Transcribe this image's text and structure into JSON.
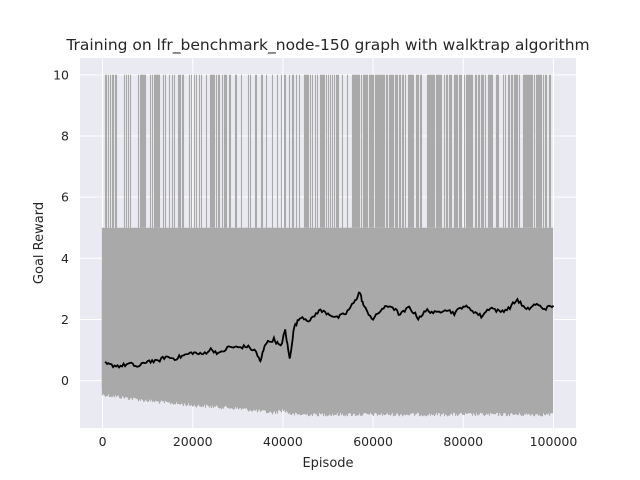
{
  "chart_data": {
    "type": "line",
    "title": "Training on lfr_benchmark_node-150 graph with walktrap algorithm",
    "xlabel": "Episode",
    "ylabel": "Goal Reward",
    "xlim": [
      -5000,
      105000
    ],
    "ylim": [
      -1.55,
      10.55
    ],
    "xticks": [
      0,
      20000,
      40000,
      60000,
      80000,
      100000
    ],
    "yticks": [
      0,
      2,
      4,
      6,
      8,
      10
    ],
    "grid": true,
    "background": "#eaeaf2",
    "series": [
      {
        "kind": "raw",
        "color": "#a9a9a9",
        "x_range": [
          0,
          100000
        ],
        "dense_band": [
          -1.0,
          5.0
        ],
        "upper_band": [
          0,
          10.0
        ],
        "early_lower_envelope": [
          [
            0,
            -0.4
          ],
          [
            5000,
            -0.5
          ],
          [
            10000,
            -0.6
          ],
          [
            20000,
            -0.75
          ],
          [
            30000,
            -0.85
          ],
          [
            38000,
            -1.0
          ],
          [
            40000,
            -0.9
          ],
          [
            42000,
            -1.05
          ],
          [
            100000,
            -1.05
          ]
        ]
      },
      {
        "kind": "rolling_mean",
        "color": "#000000",
        "x": [
          500,
          2000,
          4000,
          6000,
          8000,
          10000,
          12000,
          14000,
          16000,
          18000,
          20000,
          22000,
          24000,
          26000,
          28000,
          30000,
          32000,
          34000,
          35000,
          36000,
          38000,
          39500,
          40500,
          41500,
          42500,
          44000,
          46000,
          48000,
          50000,
          52000,
          54000,
          56000,
          57000,
          58000,
          60000,
          62000,
          64000,
          66000,
          68000,
          70000,
          72000,
          74000,
          76000,
          78000,
          80000,
          82000,
          84000,
          86000,
          88000,
          90000,
          92000,
          94000,
          96000,
          98000,
          100000
        ],
        "y": [
          0.55,
          0.5,
          0.48,
          0.55,
          0.45,
          0.65,
          0.62,
          0.78,
          0.72,
          0.82,
          0.92,
          0.85,
          1.02,
          0.88,
          1.1,
          1.08,
          1.12,
          0.95,
          0.6,
          1.2,
          1.35,
          1.1,
          1.65,
          0.7,
          1.75,
          2.1,
          1.95,
          2.3,
          2.2,
          2.05,
          2.2,
          2.6,
          2.9,
          2.4,
          2.0,
          2.35,
          2.45,
          2.15,
          2.4,
          2.05,
          2.3,
          2.2,
          2.35,
          2.2,
          2.45,
          2.3,
          2.1,
          2.4,
          2.25,
          2.35,
          2.65,
          2.3,
          2.5,
          2.35,
          2.45
        ]
      }
    ]
  }
}
